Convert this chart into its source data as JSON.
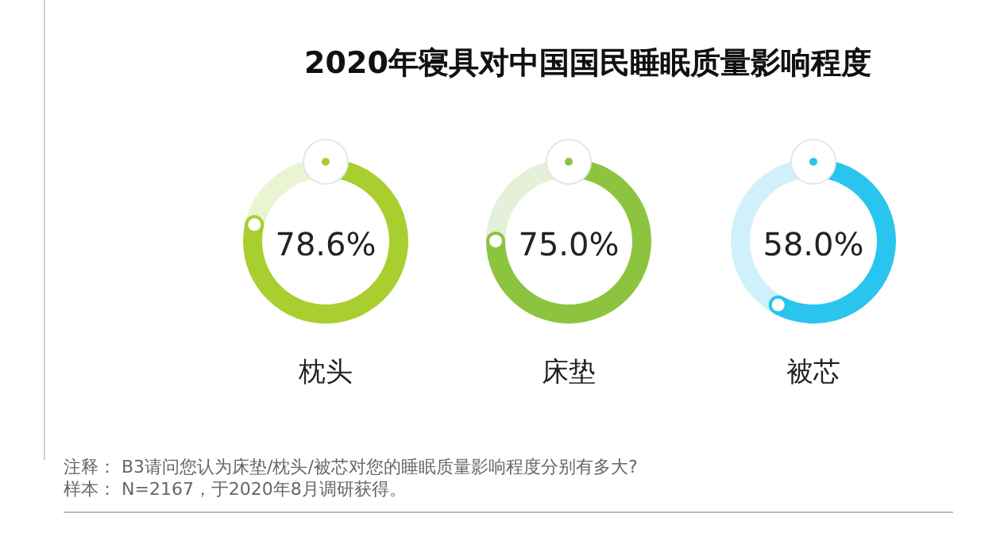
{
  "chart_data": [
    {
      "type": "donut",
      "title": "2020年寝具对中国国民睡眠质量影响程度",
      "categories": [
        "枕头",
        null
      ],
      "values": [
        78.6,
        21.4
      ],
      "colors": [
        "#a8cf2f",
        "#eaf4d2"
      ],
      "value_labels": [
        "78.6%",
        null
      ]
    },
    {
      "type": "donut",
      "categories": [
        "床垫",
        null
      ],
      "values": [
        75.0,
        25.0
      ],
      "colors": [
        "#8cc43f",
        "#e5f0d8"
      ],
      "value_labels": [
        "75.0%",
        null
      ]
    },
    {
      "type": "donut",
      "categories": [
        "被芯",
        null
      ],
      "values": [
        58.0,
        42.0
      ],
      "colors": [
        "#29c5ef",
        "#d0f1fb"
      ],
      "value_labels": [
        "58.0%",
        null
      ],
      "annotations": [
        "注释：  B3请问您认为床垫/枕头/被芯对您的睡眠质量影响程度分别有多大?",
        "样本：  N=2167，于2020年8月调研获得。"
      ]
    }
  ]
}
